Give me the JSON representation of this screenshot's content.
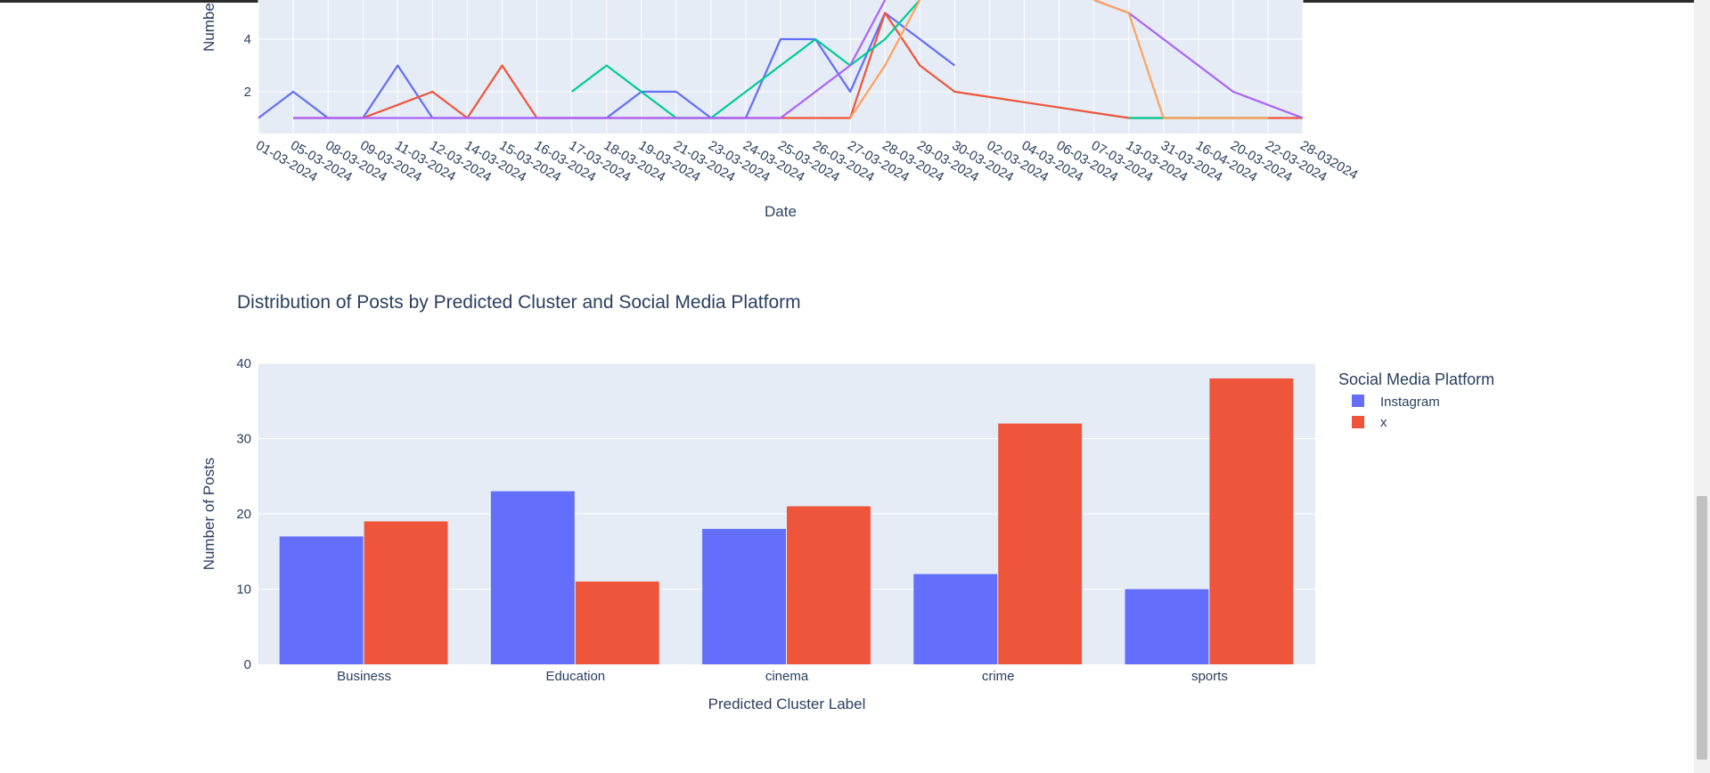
{
  "colors": {
    "plot_bg": "#e5ecf6",
    "grid": "#ffffff",
    "text": "#2a3f5f",
    "series": [
      "#636efa",
      "#ef553b",
      "#00cc96",
      "#ab63fa",
      "#ffa15a"
    ]
  },
  "chart_data": [
    {
      "type": "line",
      "title": "",
      "xlabel": "Date",
      "ylabel": "Numbe",
      "ylim": [
        0,
        5.2
      ],
      "y_ticks": [
        2,
        4
      ],
      "grid": true,
      "categories": [
        "01-03-2024",
        "05-03-2024",
        "08-03-2024",
        "09-03-2024",
        "11-03-2024",
        "12-03-2024",
        "14-03-2024",
        "15-03-2024",
        "16-03-2024",
        "17-03-2024",
        "18-03-2024",
        "19-03-2024",
        "21-03-2024",
        "23-03-2024",
        "24-03-2024",
        "25-03-2024",
        "26-03-2024",
        "27-03-2024",
        "28-03-2024",
        "29-03-2024",
        "30-03-2024",
        "02-03-2024",
        "04-03-2024",
        "06-03-2024",
        "07-03-2024",
        "13-03-2024",
        "31-03-2024",
        "16-04-2024",
        "20-03-2024",
        "22-03-2024",
        "28-032024"
      ],
      "series": [
        {
          "values": [
            1,
            2,
            1,
            1,
            3,
            1,
            1,
            1,
            1,
            1,
            1,
            2,
            2,
            1,
            1,
            4,
            4,
            2,
            5,
            4,
            3,
            null,
            null,
            null,
            null,
            null,
            null,
            null,
            null,
            null,
            null
          ]
        },
        {
          "values": [
            null,
            1,
            1,
            1,
            1.5,
            2,
            1,
            3,
            1,
            1,
            1,
            1,
            1,
            1,
            1,
            1,
            1,
            1,
            5,
            3,
            2,
            1.8,
            1.6,
            1.4,
            1.2,
            1,
            1,
            1,
            1,
            1,
            1
          ]
        },
        {
          "values": [
            null,
            null,
            null,
            null,
            null,
            null,
            null,
            null,
            null,
            2,
            3,
            2,
            1,
            1,
            2,
            3,
            4,
            3,
            4,
            6,
            null,
            null,
            null,
            null,
            null,
            1,
            1,
            1,
            1,
            1,
            null
          ]
        },
        {
          "values": [
            null,
            1,
            1,
            1,
            1,
            1,
            1,
            1,
            1,
            1,
            1,
            1,
            1,
            1,
            1,
            1,
            2,
            3,
            7,
            null,
            null,
            null,
            null,
            null,
            6,
            5,
            4,
            3,
            2,
            1.5,
            1
          ]
        },
        {
          "values": [
            null,
            null,
            null,
            null,
            null,
            null,
            null,
            null,
            null,
            null,
            null,
            null,
            null,
            null,
            null,
            null,
            null,
            1,
            3,
            6,
            null,
            null,
            null,
            null,
            6,
            5,
            1,
            1,
            1,
            1,
            null
          ]
        }
      ]
    },
    {
      "type": "bar",
      "title": "Distribution of Posts by Predicted Cluster and Social Media Platform",
      "xlabel": "Predicted Cluster Label",
      "ylabel": "Number of Posts",
      "ylim": [
        0,
        40
      ],
      "y_ticks": [
        0,
        10,
        20,
        30,
        40
      ],
      "grid": true,
      "legend_title": "Social Media Platform",
      "legend_position": "right",
      "categories": [
        "Business",
        "Education",
        "cinema",
        "crime",
        "sports"
      ],
      "series": [
        {
          "name": "Instagram",
          "color": "#636efa",
          "values": [
            17,
            23,
            18,
            12,
            10
          ]
        },
        {
          "name": "x",
          "color": "#ef553b",
          "values": [
            19,
            11,
            21,
            32,
            38
          ]
        }
      ]
    }
  ]
}
